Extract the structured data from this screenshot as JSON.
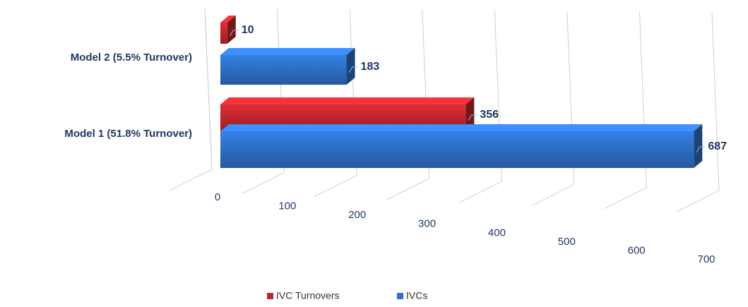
{
  "chart_data": {
    "type": "bar",
    "orientation": "horizontal",
    "categories": [
      "Model 2  (5.5% Turnover)",
      "Model 1  (51.8% Turnover)"
    ],
    "series": [
      {
        "name": "IVC Turnovers",
        "color": "#c0272d",
        "values": [
          10,
          356
        ]
      },
      {
        "name": "IVCs",
        "color": "#2e6fc7",
        "values": [
          183,
          687
        ]
      }
    ],
    "xlim": [
      0,
      700
    ],
    "xticks": [
      0,
      100,
      200,
      300,
      400,
      500,
      600,
      700
    ],
    "grid": true,
    "legend": "bottom"
  }
}
